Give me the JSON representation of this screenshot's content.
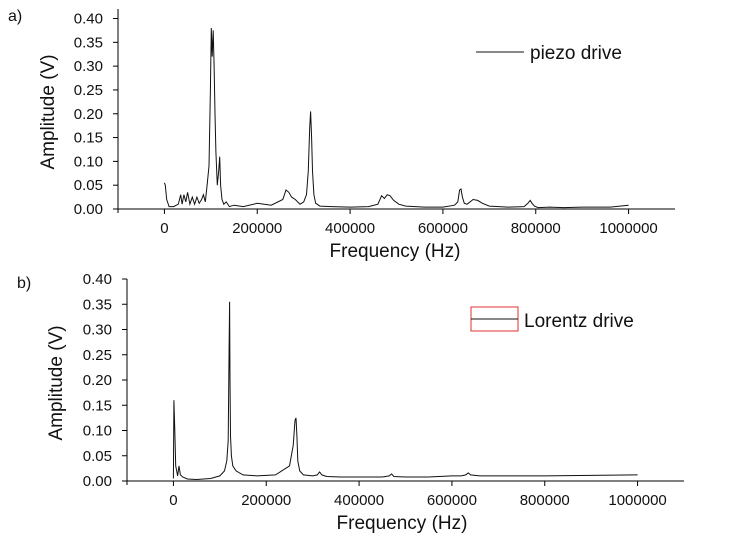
{
  "chart_data": [
    {
      "type": "line",
      "panel_label": "a)",
      "xlabel": "Frequency (Hz)",
      "ylabel": "Amplitude (V)",
      "xlim": [
        -100000,
        1100000
      ],
      "ylim": [
        0,
        0.42
      ],
      "xticks": [
        0,
        200000,
        400000,
        600000,
        800000,
        1000000
      ],
      "xtick_labels": [
        "0",
        "200000",
        "400000",
        "600000",
        "800000",
        "1000000"
      ],
      "yticks": [
        0,
        0.05,
        0.1,
        0.15,
        0.2,
        0.25,
        0.3,
        0.35,
        0.4
      ],
      "ytick_labels": [
        "0.00",
        "0.05",
        "0.10",
        "0.15",
        "0.20",
        "0.25",
        "0.30",
        "0.35",
        "0.40"
      ],
      "legend": "piezo drive",
      "legend_position": "top-right",
      "series": [
        {
          "name": "piezo drive",
          "x": [
            0,
            2000,
            5000,
            10000,
            20000,
            30000,
            35000,
            38000,
            42000,
            46000,
            50000,
            55000,
            60000,
            65000,
            70000,
            75000,
            80000,
            84000,
            88000,
            92000,
            96000,
            99000,
            101000,
            103000,
            105000,
            107000,
            109000,
            111000,
            114000,
            117000,
            119000,
            121000,
            124000,
            128000,
            133000,
            140000,
            150000,
            170000,
            200000,
            230000,
            255000,
            262000,
            268000,
            274000,
            282000,
            292000,
            300000,
            306000,
            310000,
            313000,
            315000,
            317000,
            319000,
            322000,
            326000,
            335000,
            360000,
            400000,
            440000,
            460000,
            468000,
            474000,
            480000,
            486000,
            494000,
            505000,
            520000,
            560000,
            600000,
            625000,
            632000,
            636000,
            639000,
            642000,
            646000,
            652000,
            665000,
            675000,
            685000,
            700000,
            740000,
            775000,
            783000,
            788000,
            792000,
            797000,
            805000,
            830000,
            860000,
            900000,
            960000,
            1000000
          ],
          "y": [
            0.055,
            0.05,
            0.02,
            0.005,
            0.005,
            0.01,
            0.03,
            0.01,
            0.03,
            0.015,
            0.035,
            0.01,
            0.025,
            0.01,
            0.025,
            0.012,
            0.02,
            0.03,
            0.015,
            0.05,
            0.09,
            0.25,
            0.38,
            0.32,
            0.375,
            0.3,
            0.2,
            0.12,
            0.05,
            0.08,
            0.11,
            0.05,
            0.02,
            0.01,
            0.015,
            0.005,
            0.008,
            0.005,
            0.012,
            0.008,
            0.02,
            0.04,
            0.035,
            0.025,
            0.02,
            0.01,
            0.015,
            0.03,
            0.08,
            0.17,
            0.205,
            0.15,
            0.08,
            0.03,
            0.012,
            0.006,
            0.005,
            0.004,
            0.005,
            0.01,
            0.028,
            0.022,
            0.03,
            0.028,
            0.018,
            0.01,
            0.006,
            0.004,
            0.004,
            0.008,
            0.015,
            0.04,
            0.042,
            0.025,
            0.012,
            0.01,
            0.02,
            0.018,
            0.012,
            0.006,
            0.004,
            0.005,
            0.012,
            0.018,
            0.012,
            0.006,
            0.003,
            0.004,
            0.003,
            0.004,
            0.004,
            0.008
          ]
        }
      ]
    },
    {
      "type": "line",
      "panel_label": "b)",
      "xlabel": "Frequency (Hz)",
      "ylabel": "Amplitude (V)",
      "xlim": [
        -100000,
        1100000
      ],
      "ylim": [
        0,
        0.4
      ],
      "xticks": [
        0,
        200000,
        400000,
        600000,
        800000,
        1000000
      ],
      "xtick_labels": [
        "0",
        "200000",
        "400000",
        "600000",
        "800000",
        "1000000"
      ],
      "yticks": [
        0,
        0.05,
        0.1,
        0.15,
        0.2,
        0.25,
        0.3,
        0.35,
        0.4
      ],
      "ytick_labels": [
        "0.00",
        "0.05",
        "0.10",
        "0.15",
        "0.20",
        "0.25",
        "0.30",
        "0.35",
        "0.40"
      ],
      "legend": "Lorentz drive",
      "legend_position": "top-right",
      "legend_box_color": "#e03030",
      "series": [
        {
          "name": "Lorentz drive",
          "x": [
            0,
            1000,
            3000,
            5000,
            7000,
            9000,
            12000,
            15000,
            20000,
            30000,
            50000,
            80000,
            100000,
            110000,
            115000,
            118000,
            120000,
            121000,
            122000,
            123000,
            125000,
            128000,
            135000,
            150000,
            180000,
            220000,
            250000,
            258000,
            262000,
            264000,
            266000,
            268000,
            272000,
            280000,
            300000,
            310000,
            315000,
            320000,
            330000,
            360000,
            400000,
            450000,
            465000,
            470000,
            475000,
            500000,
            550000,
            600000,
            620000,
            630000,
            635000,
            640000,
            660000,
            700000,
            800000,
            900000,
            1000000
          ],
          "y": [
            0.005,
            0.16,
            0.1,
            0.03,
            0.02,
            0.01,
            0.03,
            0.012,
            0.008,
            0.004,
            0.003,
            0.005,
            0.01,
            0.02,
            0.04,
            0.08,
            0.265,
            0.355,
            0.2,
            0.09,
            0.05,
            0.03,
            0.02,
            0.012,
            0.01,
            0.012,
            0.03,
            0.07,
            0.12,
            0.125,
            0.09,
            0.04,
            0.02,
            0.012,
            0.01,
            0.012,
            0.018,
            0.012,
            0.009,
            0.008,
            0.008,
            0.008,
            0.01,
            0.014,
            0.009,
            0.008,
            0.008,
            0.01,
            0.01,
            0.012,
            0.016,
            0.012,
            0.01,
            0.01,
            0.01,
            0.011,
            0.012
          ]
        }
      ]
    }
  ]
}
